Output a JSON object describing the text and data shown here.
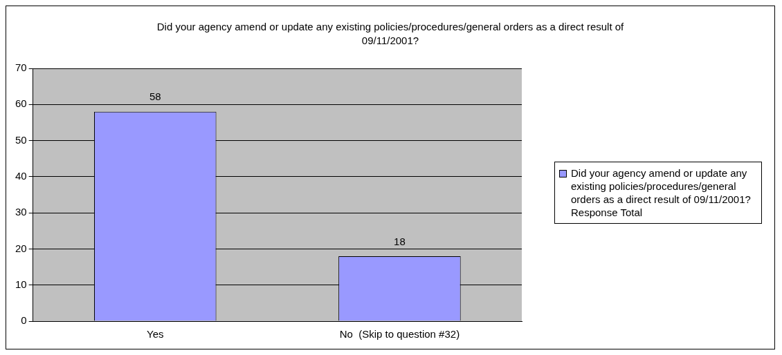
{
  "chart_data": {
    "type": "bar",
    "title": "Did your agency amend or update any existing policies/procedures/general orders as a direct result of 09/11/2001?",
    "categories": [
      "Yes",
      "No  (Skip to question #32)"
    ],
    "series": [
      {
        "name": "Did your agency amend or update any existing policies/procedures/general orders as a direct result of 09/11/2001?  Response Total",
        "color": "#9999ff",
        "values": [
          58,
          18
        ]
      }
    ],
    "ylim": [
      0,
      70
    ],
    "yticks": [
      0,
      10,
      20,
      30,
      40,
      50,
      60,
      70
    ],
    "grid": "y",
    "legend": "right",
    "data_labels": true
  }
}
